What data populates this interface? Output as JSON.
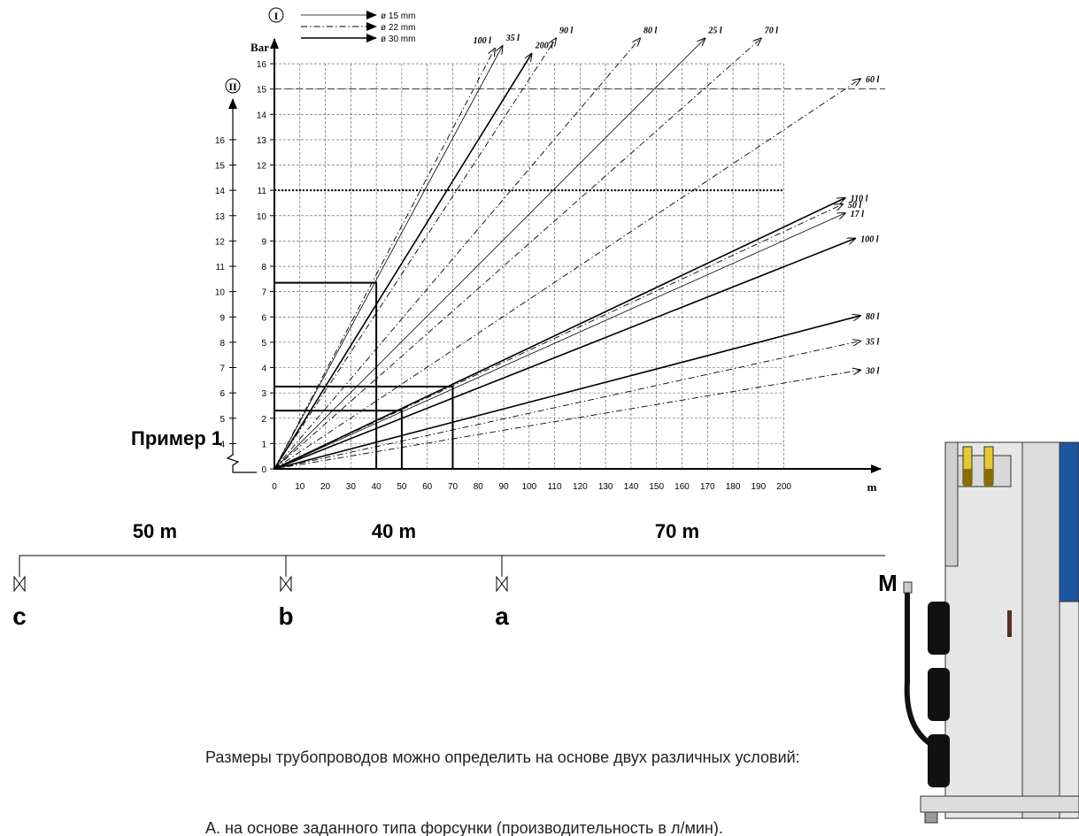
{
  "chart_data": {
    "type": "line",
    "y_label": "Bar",
    "x_label": "m",
    "axis1_label": "I",
    "axis2_label": "II",
    "xlim": [
      0,
      238
    ],
    "ylim": [
      0,
      16.7
    ],
    "y2lim": [
      3,
      19.7
    ],
    "xticks": [
      0,
      10,
      20,
      30,
      40,
      50,
      60,
      70,
      80,
      90,
      100,
      110,
      120,
      130,
      140,
      150,
      160,
      170,
      180,
      190,
      200
    ],
    "yticks": [
      0,
      1,
      2,
      3,
      4,
      5,
      6,
      7,
      8,
      9,
      10,
      11,
      12,
      13,
      14,
      15,
      16
    ],
    "y2ticks": [
      4,
      5,
      6,
      7,
      8,
      9,
      10,
      11,
      12,
      13,
      14,
      15,
      16
    ],
    "grid": true,
    "reference_lines": [
      {
        "value": 15,
        "style": "dashed"
      },
      {
        "value": 11,
        "style": "dotted"
      }
    ],
    "legend": [
      {
        "name": "ø 15 mm",
        "style": "thin"
      },
      {
        "name": "ø 22 mm",
        "style": "dashdot"
      },
      {
        "name": "ø 30 mm",
        "style": "thick"
      }
    ],
    "series": [
      {
        "name": "100 l",
        "style": "dashdot",
        "x": [
          0,
          86.5
        ],
        "values": [
          0,
          16.6
        ]
      },
      {
        "name": "35 l",
        "style": "thin",
        "x": [
          0,
          89.5
        ],
        "values": [
          0,
          16.7
        ]
      },
      {
        "name": "200 l",
        "style": "thick",
        "x": [
          0,
          101
        ],
        "values": [
          0,
          16.4
        ]
      },
      {
        "name": "90 l",
        "style": "dashdot",
        "x": [
          0,
          110.5
        ],
        "values": [
          0,
          17.0
        ]
      },
      {
        "name": "80 l",
        "style": "dashdot",
        "x": [
          0,
          143.5
        ],
        "values": [
          0,
          17.0
        ]
      },
      {
        "name": "25 l",
        "style": "thin",
        "x": [
          0,
          169
        ],
        "values": [
          0,
          17.0
        ]
      },
      {
        "name": "70 l",
        "style": "dashdot",
        "x": [
          0,
          191
        ],
        "values": [
          0,
          17.0
        ]
      },
      {
        "name": "60 l",
        "style": "dashdot",
        "x": [
          0,
          230
        ],
        "values": [
          0,
          15.4
        ]
      },
      {
        "name": "110 l",
        "style": "thick",
        "x": [
          0,
          224
        ],
        "values": [
          0,
          10.7
        ]
      },
      {
        "name": "50 l",
        "style": "dashdot",
        "x": [
          0,
          223
        ],
        "values": [
          0,
          10.45
        ]
      },
      {
        "name": "17 l",
        "style": "thin",
        "x": [
          0,
          224
        ],
        "values": [
          0,
          10.1
        ]
      },
      {
        "name": "100 l",
        "style": "thick",
        "x": [
          0,
          228
        ],
        "values": [
          0,
          9.1
        ]
      },
      {
        "name": "80 l",
        "style": "thick",
        "x": [
          0,
          230
        ],
        "values": [
          0,
          6.05
        ]
      },
      {
        "name": "35 l",
        "style": "dashdot",
        "x": [
          0,
          230
        ],
        "values": [
          0,
          5.05
        ]
      },
      {
        "name": "30 l",
        "style": "dashdot",
        "x": [
          0,
          230
        ],
        "values": [
          0,
          3.9
        ]
      }
    ],
    "example_boxes": [
      {
        "x": 40,
        "y": 7.35
      },
      {
        "x": 70,
        "y": 3.25
      },
      {
        "x": 50,
        "y": 2.3
      }
    ]
  },
  "example_title": "Пример 1",
  "segments": [
    "50 m",
    "40 m",
    "70 m"
  ],
  "points": [
    "c",
    "b",
    "a",
    "M"
  ],
  "text": [
    "Размеры трубопроводов можно определить на основе двух различных условий:",
    "A. на основе заданного типа форсунки (производительность в л/мин)."
  ]
}
